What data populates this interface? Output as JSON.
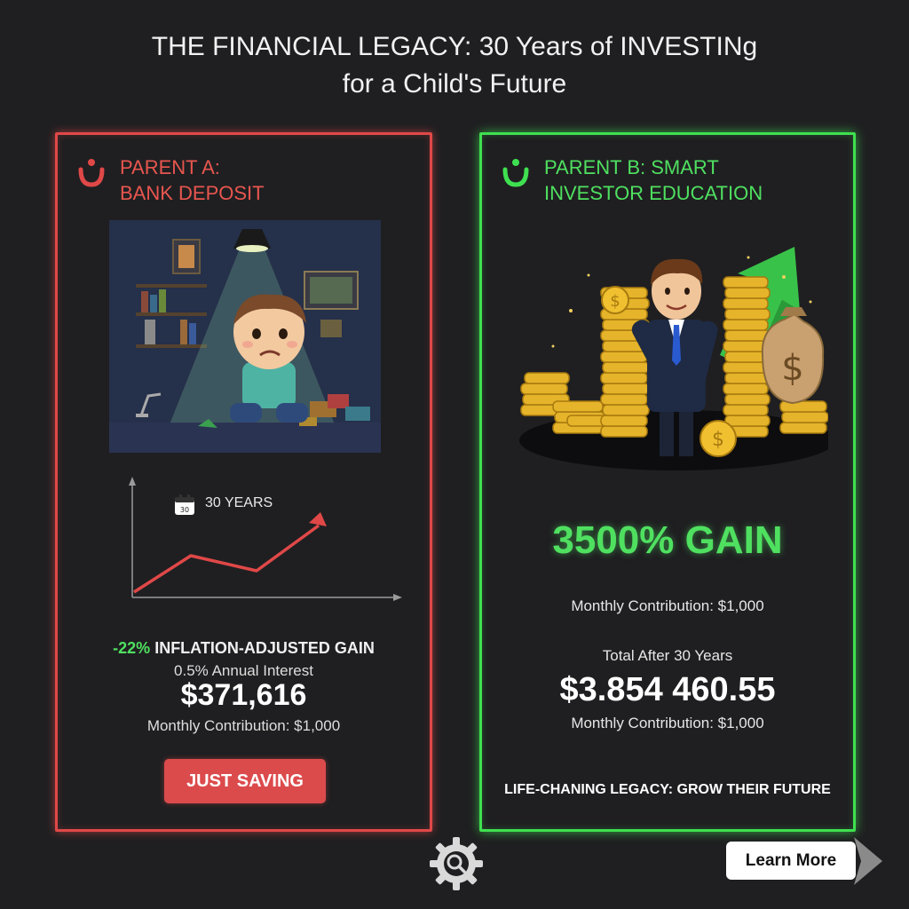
{
  "header": {
    "title_line1": "THE FINANCIAL LEGACY: 30 Years of INVESTINg",
    "title_line2": "for a Child's Future"
  },
  "panel_a": {
    "accent_color": "#e04848",
    "logo_icon": "brand-mark-icon",
    "title_line1": "PARENT A:",
    "title_line2": "BANK DEPOSIT",
    "illustration": "sad-child-in-dark-room",
    "chart_label": "30 YEARS",
    "chart_icon": "calendar-icon",
    "gain_value": "-22%",
    "gain_text": "INFLATION-ADJUSTED GAIN",
    "interest": "0.5% Annual Interest",
    "total": "$371,616",
    "contribution": "Monthly Contribution: $1,000",
    "button_label": "JUST SAVING"
  },
  "panel_b": {
    "accent_color": "#3fe050",
    "logo_icon": "brand-mark-icon",
    "title_line1": "PARENT B: SMART",
    "title_line2": "INVESTOR EDUCATION",
    "illustration": "businessman-with-gold-coins-and-arrow",
    "gain": "3500% GAIN",
    "contribution_top": "Monthly Contribution: $1,000",
    "total_label": "Total After 30 Years",
    "total": "$3.854 460.55",
    "contribution_bottom": "Monthly Contribution: $1,000",
    "tagline": "LIFE-CHANING LEGACY: GROW THEIR FUTURE"
  },
  "footer": {
    "settings_icon": "gear-search-icon",
    "learn_more_label": "Learn More"
  }
}
